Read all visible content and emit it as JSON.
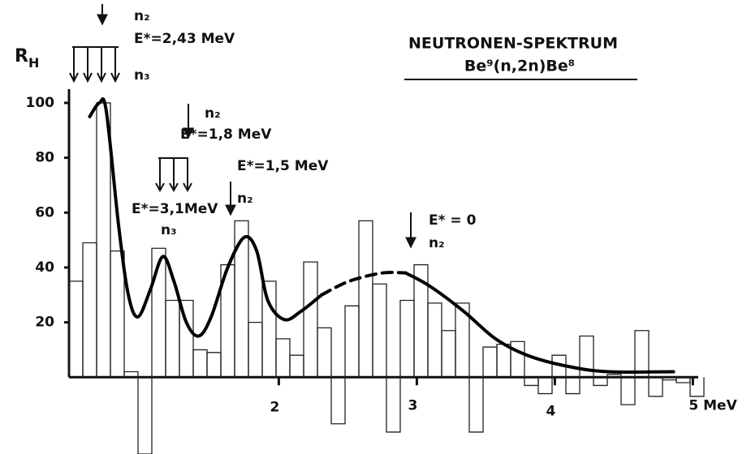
{
  "chart_data": {
    "type": "histogram",
    "title": "NEUTRONEN-SPEKTRUM",
    "subtitle": "Be⁹(n,2n)Be⁸",
    "ylabel": {
      "main": "R",
      "sub": "H"
    },
    "xlim": [
      0.48,
      5.08
    ],
    "ylim": [
      -28,
      105
    ],
    "xticks": [
      2,
      3,
      4,
      {
        "value": 5,
        "label": "5 MeV"
      }
    ],
    "yticks": [
      20,
      40,
      60,
      80,
      100
    ],
    "bins": [
      0.48,
      0.58,
      0.68,
      0.78,
      0.88,
      0.98,
      1.08,
      1.18,
      1.28,
      1.38,
      1.48,
      1.58,
      1.68,
      1.78,
      1.88,
      1.98,
      2.08,
      2.18,
      2.28,
      2.38,
      2.48,
      2.58,
      2.68,
      2.78,
      2.88,
      2.98,
      3.08,
      3.18,
      3.28,
      3.38,
      3.48,
      3.58,
      3.68,
      3.78,
      3.88,
      3.98,
      4.08,
      4.18,
      4.28,
      4.38,
      4.48,
      4.58,
      4.68,
      4.78,
      4.88,
      4.98,
      5.08
    ],
    "values": [
      35,
      49,
      100,
      46,
      2,
      -28,
      47,
      28,
      28,
      10,
      9,
      41,
      57,
      20,
      35,
      14,
      8,
      42,
      18,
      -17,
      26,
      57,
      34,
      -20,
      28,
      41,
      27,
      17,
      27,
      -20,
      11,
      12,
      13,
      -3,
      -6,
      8,
      -6,
      15,
      -3,
      1,
      -10,
      17,
      -7,
      -1,
      -2,
      -7
    ],
    "curve_segments": [
      {
        "dashed": false,
        "x": [
          0.63,
          0.7,
          0.75,
          0.84,
          0.91,
          0.98,
          1.07,
          1.16,
          1.24,
          1.33,
          1.42,
          1.51,
          1.63,
          1.75,
          1.84,
          1.92,
          2.04,
          2.16,
          2.31
        ],
        "values": [
          95,
          100,
          97,
          55,
          30,
          22,
          32,
          44,
          35,
          20,
          15,
          22,
          40,
          51,
          46,
          28,
          21,
          24,
          30
        ]
      },
      {
        "dashed": true,
        "x": [
          2.31,
          2.51,
          2.75,
          2.92
        ],
        "values": [
          30,
          35,
          38,
          38
        ]
      },
      {
        "dashed": false,
        "x": [
          2.92,
          3.1,
          3.34,
          3.57,
          3.8,
          4.09,
          4.39,
          4.86
        ],
        "values": [
          38,
          33,
          24,
          14,
          8,
          4,
          2,
          2
        ]
      }
    ],
    "annotations": {
      "a_n2": "n₂",
      "a_e": "E*=2,43 MeV",
      "a_n3": "n₃",
      "b_n2": "n₂",
      "b_e": "E*=1,8 MeV",
      "c_e": "E*=1,5 MeV",
      "c_n2": "n₂",
      "d_e": "E*=3,1MeV",
      "d_n3": "n₃",
      "e_e": "E* = 0",
      "e_n2": "n₂"
    }
  }
}
